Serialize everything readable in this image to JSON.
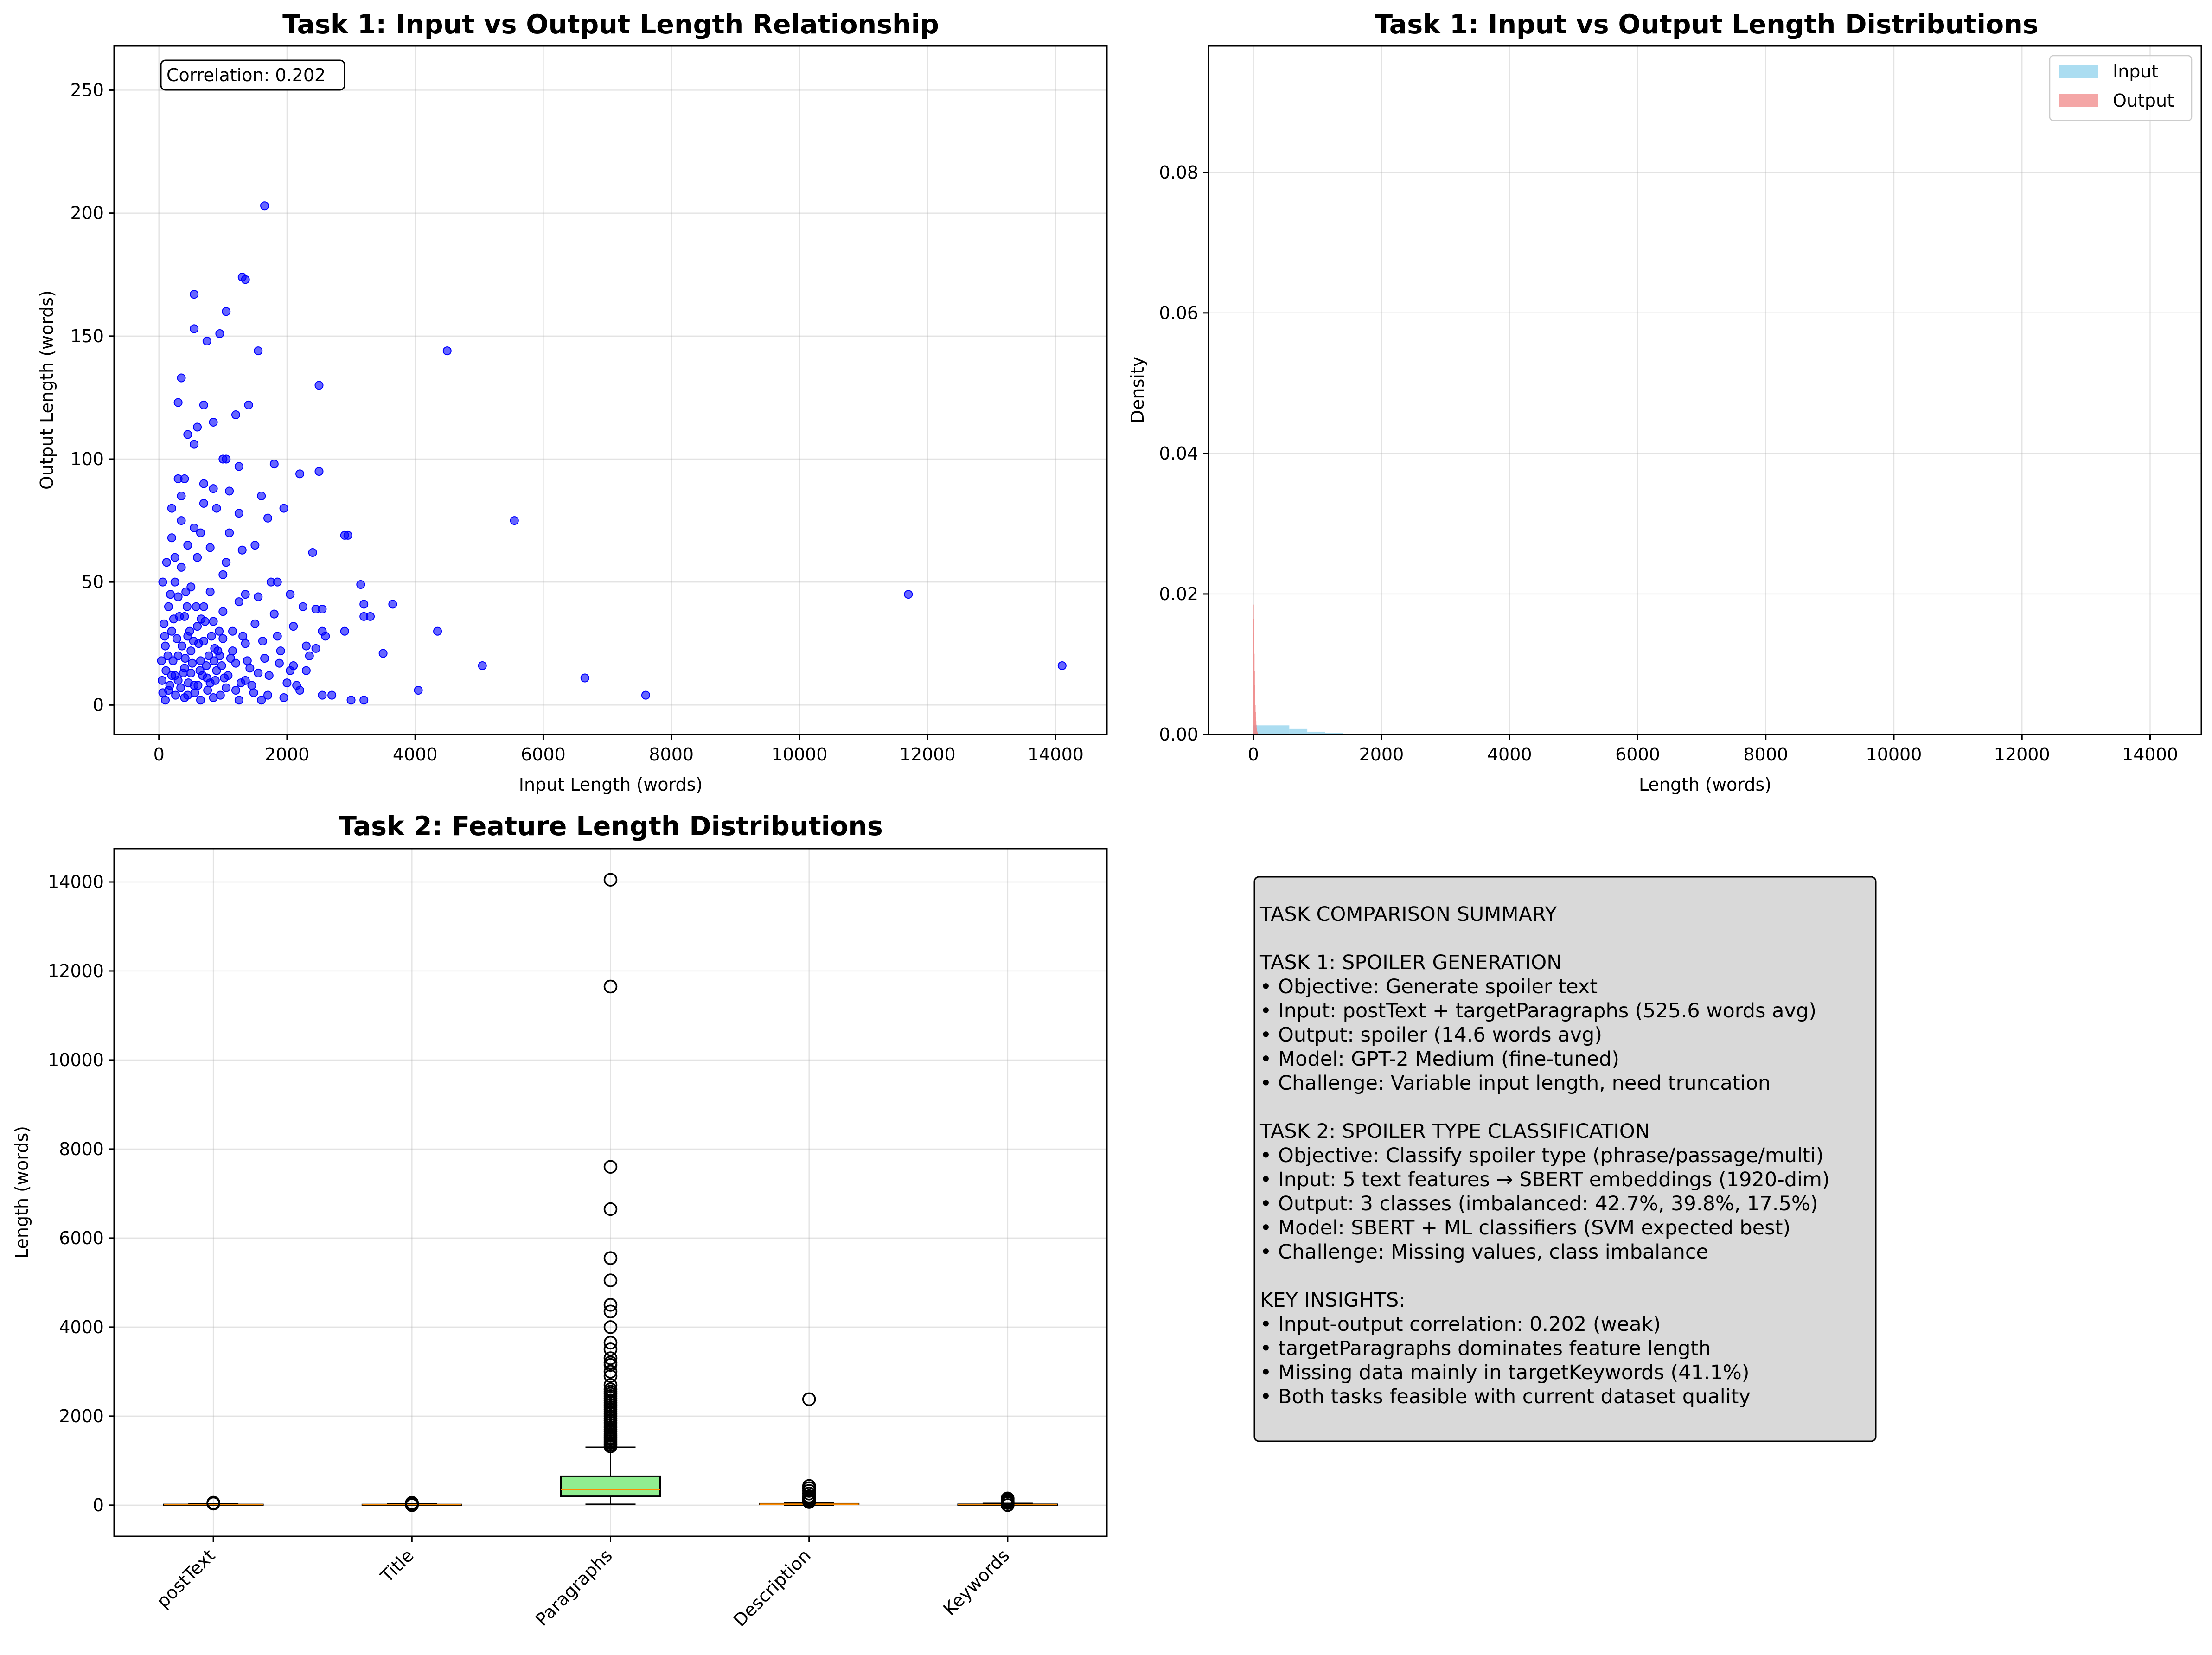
{
  "colors": {
    "scatter": "#0000ff",
    "hist_input": "#87ceeb",
    "hist_output": "#f08080",
    "box_fill": [
      "#ffb6c1",
      "#add8e6",
      "#90ee90",
      "#ffffe0",
      "#ffa07a"
    ],
    "median": "#ff8c00",
    "summary_bg": "#d9d9d9"
  },
  "chart_data": [
    {
      "id": "scatter",
      "type": "scatter",
      "title": "Task 1: Input vs Output Length Relationship",
      "xlabel": "Input Length (words)",
      "ylabel": "Output Length (words)",
      "xlim": [
        -700,
        14800
      ],
      "ylim": [
        -12,
        268
      ],
      "xticks": [
        0,
        2000,
        4000,
        6000,
        8000,
        10000,
        12000,
        14000
      ],
      "yticks": [
        0,
        50,
        100,
        150,
        200,
        250
      ],
      "grid": true,
      "annotation": "Correlation: 0.202",
      "points": [
        [
          1650,
          203
        ],
        [
          1300,
          174
        ],
        [
          1350,
          173
        ],
        [
          550,
          167
        ],
        [
          1050,
          160
        ],
        [
          550,
          153
        ],
        [
          950,
          151
        ],
        [
          750,
          148
        ],
        [
          1550,
          144
        ],
        [
          4500,
          144
        ],
        [
          350,
          133
        ],
        [
          2500,
          130
        ],
        [
          300,
          123
        ],
        [
          700,
          122
        ],
        [
          1400,
          122
        ],
        [
          1200,
          118
        ],
        [
          850,
          115
        ],
        [
          600,
          113
        ],
        [
          450,
          110
        ],
        [
          550,
          106
        ],
        [
          1000,
          100
        ],
        [
          1050,
          100
        ],
        [
          1800,
          98
        ],
        [
          1250,
          97
        ],
        [
          2200,
          94
        ],
        [
          2500,
          95
        ],
        [
          400,
          92
        ],
        [
          300,
          92
        ],
        [
          700,
          90
        ],
        [
          850,
          88
        ],
        [
          1600,
          85
        ],
        [
          1100,
          87
        ],
        [
          350,
          85
        ],
        [
          200,
          80
        ],
        [
          1950,
          80
        ],
        [
          700,
          82
        ],
        [
          900,
          80
        ],
        [
          1250,
          78
        ],
        [
          1700,
          76
        ],
        [
          5550,
          75
        ],
        [
          350,
          75
        ],
        [
          550,
          72
        ],
        [
          650,
          70
        ],
        [
          1100,
          70
        ],
        [
          2900,
          69
        ],
        [
          2950,
          69
        ],
        [
          200,
          68
        ],
        [
          450,
          65
        ],
        [
          1500,
          65
        ],
        [
          800,
          64
        ],
        [
          2400,
          62
        ],
        [
          1300,
          63
        ],
        [
          600,
          60
        ],
        [
          1050,
          58
        ],
        [
          350,
          56
        ],
        [
          1000,
          53
        ],
        [
          1850,
          50
        ],
        [
          1750,
          50
        ],
        [
          3150,
          49
        ],
        [
          250,
          50
        ],
        [
          500,
          48
        ],
        [
          800,
          46
        ],
        [
          11700,
          45
        ],
        [
          1350,
          45
        ],
        [
          2050,
          45
        ],
        [
          1550,
          44
        ],
        [
          300,
          44
        ],
        [
          1250,
          42
        ],
        [
          2250,
          40
        ],
        [
          3200,
          41
        ],
        [
          3650,
          41
        ],
        [
          700,
          40
        ],
        [
          2450,
          39
        ],
        [
          2550,
          39
        ],
        [
          1000,
          38
        ],
        [
          3200,
          36
        ],
        [
          3300,
          36
        ],
        [
          1800,
          37
        ],
        [
          400,
          36
        ],
        [
          850,
          34
        ],
        [
          1500,
          33
        ],
        [
          600,
          32
        ],
        [
          2100,
          32
        ],
        [
          2550,
          30
        ],
        [
          4350,
          30
        ],
        [
          1150,
          30
        ],
        [
          2900,
          30
        ],
        [
          200,
          30
        ],
        [
          450,
          28
        ],
        [
          1000,
          27
        ],
        [
          2600,
          28
        ],
        [
          700,
          26
        ],
        [
          1350,
          25
        ],
        [
          2300,
          24
        ],
        [
          2450,
          23
        ],
        [
          3500,
          21
        ],
        [
          500,
          22
        ],
        [
          1900,
          22
        ],
        [
          950,
          20
        ],
        [
          300,
          20
        ],
        [
          1650,
          19
        ],
        [
          5050,
          16
        ],
        [
          14100,
          16
        ],
        [
          650,
          18
        ],
        [
          1200,
          17
        ],
        [
          2100,
          16
        ],
        [
          2300,
          14
        ],
        [
          400,
          15
        ],
        [
          900,
          14
        ],
        [
          1550,
          13
        ],
        [
          6650,
          11
        ],
        [
          250,
          12
        ],
        [
          750,
          11
        ],
        [
          1350,
          10
        ],
        [
          2000,
          9
        ],
        [
          4050,
          6
        ],
        [
          550,
          8
        ],
        [
          1050,
          7
        ],
        [
          2200,
          6
        ],
        [
          150,
          6
        ],
        [
          7600,
          4
        ],
        [
          450,
          4
        ],
        [
          850,
          3
        ],
        [
          3000,
          2
        ],
        [
          3200,
          2
        ],
        [
          1600,
          2
        ],
        [
          100,
          2
        ],
        [
          650,
          2
        ],
        [
          1250,
          2
        ],
        [
          2550,
          4
        ],
        [
          50,
          10
        ],
        [
          100,
          24
        ],
        [
          150,
          40
        ],
        [
          120,
          58
        ],
        [
          80,
          33
        ],
        [
          180,
          45
        ],
        [
          250,
          60
        ],
        [
          60,
          50
        ],
        [
          220,
          18
        ],
        [
          280,
          27
        ],
        [
          320,
          36
        ],
        [
          380,
          13
        ],
        [
          420,
          46
        ],
        [
          480,
          30
        ],
        [
          520,
          17
        ],
        [
          580,
          40
        ],
        [
          620,
          25
        ],
        [
          680,
          12
        ],
        [
          720,
          34
        ],
        [
          780,
          20
        ],
        [
          820,
          28
        ],
        [
          880,
          10
        ],
        [
          920,
          22
        ],
        [
          980,
          16
        ],
        [
          60,
          5
        ],
        [
          110,
          14
        ],
        [
          170,
          8
        ],
        [
          260,
          4
        ],
        [
          340,
          7
        ],
        [
          400,
          3
        ],
        [
          460,
          9
        ],
        [
          560,
          5
        ],
        [
          640,
          14
        ],
        [
          760,
          6
        ],
        [
          860,
          18
        ],
        [
          960,
          4
        ],
        [
          1080,
          12
        ],
        [
          1150,
          22
        ],
        [
          1280,
          9
        ],
        [
          1420,
          15
        ],
        [
          1480,
          5
        ],
        [
          1620,
          26
        ],
        [
          1720,
          12
        ],
        [
          1880,
          17
        ],
        [
          40,
          18
        ],
        [
          90,
          28
        ],
        [
          140,
          20
        ],
        [
          200,
          12
        ],
        [
          230,
          35
        ],
        [
          300,
          10
        ],
        [
          360,
          24
        ],
        [
          410,
          19
        ],
        [
          440,
          40
        ],
        [
          500,
          13
        ],
        [
          540,
          26
        ],
        [
          610,
          8
        ],
        [
          660,
          35
        ],
        [
          740,
          16
        ],
        [
          800,
          9
        ],
        [
          870,
          23
        ],
        [
          940,
          30
        ],
        [
          1020,
          11
        ],
        [
          1120,
          19
        ],
        [
          1200,
          6
        ],
        [
          1310,
          28
        ],
        [
          1380,
          18
        ],
        [
          1450,
          8
        ],
        [
          1700,
          4
        ],
        [
          1950,
          3
        ],
        [
          2050,
          14
        ],
        [
          2150,
          8
        ],
        [
          2350,
          20
        ],
        [
          2700,
          4
        ],
        [
          1850,
          28
        ]
      ]
    },
    {
      "id": "hist",
      "type": "area",
      "title": "Task 1: Input vs Output Length Distributions",
      "xlabel": "Length (words)",
      "ylabel": "Density",
      "xlim": [
        -700,
        14800
      ],
      "ylim": [
        0,
        0.098
      ],
      "xticks": [
        0,
        2000,
        4000,
        6000,
        8000,
        10000,
        12000,
        14000
      ],
      "yticks": [
        0.0,
        0.02,
        0.04,
        0.06,
        0.08
      ],
      "grid": true,
      "legend_position": "upper right",
      "series": [
        {
          "name": "Input",
          "bin_width": 281,
          "bins": [
            [
              0,
              0.0013
            ],
            [
              281,
              0.0013
            ],
            [
              562,
              0.0008
            ],
            [
              843,
              0.0004
            ],
            [
              1124,
              0.0002
            ],
            [
              1405,
              0.0001
            ],
            [
              1686,
              6e-05
            ],
            [
              1967,
              3e-05
            ],
            [
              2248,
              2e-05
            ],
            [
              2529,
              1e-05
            ]
          ]
        },
        {
          "name": "Output",
          "bin_width": 4,
          "bins": [
            [
              0,
              0.0185
            ],
            [
              4,
              0.0165
            ],
            [
              8,
              0.0145
            ],
            [
              12,
              0.0115
            ],
            [
              16,
              0.009
            ],
            [
              20,
              0.007
            ],
            [
              24,
              0.0055
            ],
            [
              28,
              0.0042
            ],
            [
              32,
              0.0032
            ],
            [
              36,
              0.0025
            ],
            [
              40,
              0.0019
            ],
            [
              44,
              0.0014
            ],
            [
              48,
              0.001
            ],
            [
              52,
              0.0007
            ],
            [
              56,
              0.0005
            ],
            [
              60,
              0.0003
            ],
            [
              64,
              0.0002
            ],
            [
              68,
              0.0001
            ]
          ]
        }
      ]
    },
    {
      "id": "box",
      "type": "box",
      "title": "Task 2: Feature Length Distributions",
      "xlabel": "",
      "ylabel": "Length (words)",
      "ylim": [
        -700,
        14750
      ],
      "yticks": [
        0,
        2000,
        4000,
        6000,
        8000,
        10000,
        12000,
        14000
      ],
      "grid": true,
      "categories": [
        "postText",
        "Title",
        "Paragraphs",
        "Description",
        "Keywords"
      ],
      "stats": [
        {
          "q1": 8,
          "median": 12,
          "q3": 17,
          "whisker_low": 1,
          "whisker_high": 30,
          "outliers": [
            35,
            42,
            50,
            55
          ]
        },
        {
          "q1": 9,
          "median": 12,
          "q3": 16,
          "whisker_low": 1,
          "whisker_high": 26,
          "outliers": [
            0,
            30,
            38,
            45,
            52
          ]
        },
        {
          "q1": 200,
          "median": 350,
          "q3": 650,
          "whisker_low": 20,
          "whisker_high": 1300,
          "outliers": [
            1320,
            1360,
            1400,
            1440,
            1480,
            1520,
            1560,
            1600,
            1650,
            1700,
            1750,
            1800,
            1850,
            1900,
            1950,
            2000,
            2050,
            2100,
            2150,
            2200,
            2250,
            2300,
            2350,
            2400,
            2450,
            2500,
            2550,
            2600,
            2700,
            2900,
            3000,
            3150,
            3200,
            3300,
            3500,
            3650,
            4000,
            4350,
            4500,
            5050,
            5550,
            6650,
            7600,
            11650,
            14050
          ]
        },
        {
          "q1": 15,
          "median": 22,
          "q3": 35,
          "whisker_low": 1,
          "whisker_high": 65,
          "outliers": [
            70,
            85,
            100,
            130,
            160,
            200,
            260,
            320,
            380,
            430,
            2380
          ]
        },
        {
          "q1": 8,
          "median": 12,
          "q3": 20,
          "whisker_low": 1,
          "whisker_high": 40,
          "outliers": [
            0,
            48,
            60,
            75,
            95,
            120,
            150
          ]
        }
      ]
    }
  ],
  "summary": {
    "lines": [
      "TASK COMPARISON SUMMARY",
      "",
      "TASK 1: SPOILER GENERATION",
      "• Objective: Generate spoiler text",
      "• Input: postText + targetParagraphs (525.6 words avg)",
      "• Output: spoiler (14.6 words avg)",
      "• Model: GPT-2 Medium (fine-tuned)",
      "• Challenge: Variable input length, need truncation",
      "",
      "TASK 2: SPOILER TYPE CLASSIFICATION",
      "• Objective: Classify spoiler type (phrase/passage/multi)",
      "• Input: 5 text features → SBERT embeddings (1920-dim)",
      "• Output: 3 classes (imbalanced: 42.7%, 39.8%, 17.5%)",
      "• Model: SBERT + ML classifiers (SVM expected best)",
      "• Challenge: Missing values, class imbalance",
      "",
      "KEY INSIGHTS:",
      "• Input-output correlation: 0.202 (weak)",
      "• targetParagraphs dominates feature length",
      "• Missing data mainly in targetKeywords (41.1%)",
      "• Both tasks feasible with current dataset quality"
    ]
  }
}
